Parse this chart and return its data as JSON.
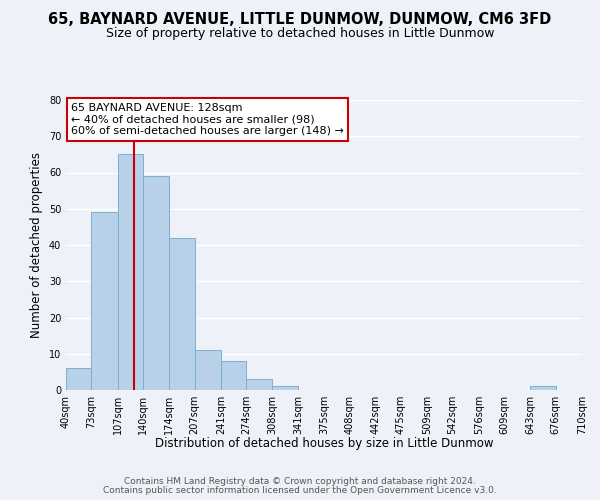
{
  "title": "65, BAYNARD AVENUE, LITTLE DUNMOW, DUNMOW, CM6 3FD",
  "subtitle": "Size of property relative to detached houses in Little Dunmow",
  "xlabel": "Distribution of detached houses by size in Little Dunmow",
  "ylabel": "Number of detached properties",
  "bin_edges": [
    40,
    73,
    107,
    140,
    174,
    207,
    241,
    274,
    308,
    341,
    375,
    408,
    442,
    475,
    509,
    542,
    576,
    609,
    643,
    676,
    710
  ],
  "bin_counts": [
    6,
    49,
    65,
    59,
    42,
    11,
    8,
    3,
    1,
    0,
    0,
    0,
    0,
    0,
    0,
    0,
    0,
    0,
    1,
    0
  ],
  "bar_color": "#b8d0e8",
  "bar_edgecolor": "#7aafd4",
  "red_line_x": 128,
  "annotation_title": "65 BAYNARD AVENUE: 128sqm",
  "annotation_line1": "← 40% of detached houses are smaller (98)",
  "annotation_line2": "60% of semi-detached houses are larger (148) →",
  "annotation_box_color": "#ffffff",
  "annotation_box_edgecolor": "#cc0000",
  "red_line_color": "#cc0000",
  "ylim": [
    0,
    80
  ],
  "yticks": [
    0,
    10,
    20,
    30,
    40,
    50,
    60,
    70,
    80
  ],
  "tick_labels": [
    "40sqm",
    "73sqm",
    "107sqm",
    "140sqm",
    "174sqm",
    "207sqm",
    "241sqm",
    "274sqm",
    "308sqm",
    "341sqm",
    "375sqm",
    "408sqm",
    "442sqm",
    "475sqm",
    "509sqm",
    "542sqm",
    "576sqm",
    "609sqm",
    "643sqm",
    "676sqm",
    "710sqm"
  ],
  "footer_line1": "Contains HM Land Registry data © Crown copyright and database right 2024.",
  "footer_line2": "Contains public sector information licensed under the Open Government Licence v3.0.",
  "background_color": "#eef2f8",
  "plot_background_color": "#eef2f8",
  "grid_color": "#ffffff",
  "title_fontsize": 10.5,
  "subtitle_fontsize": 9,
  "axis_label_fontsize": 8.5,
  "tick_fontsize": 7,
  "annotation_fontsize": 8,
  "footer_fontsize": 6.5
}
